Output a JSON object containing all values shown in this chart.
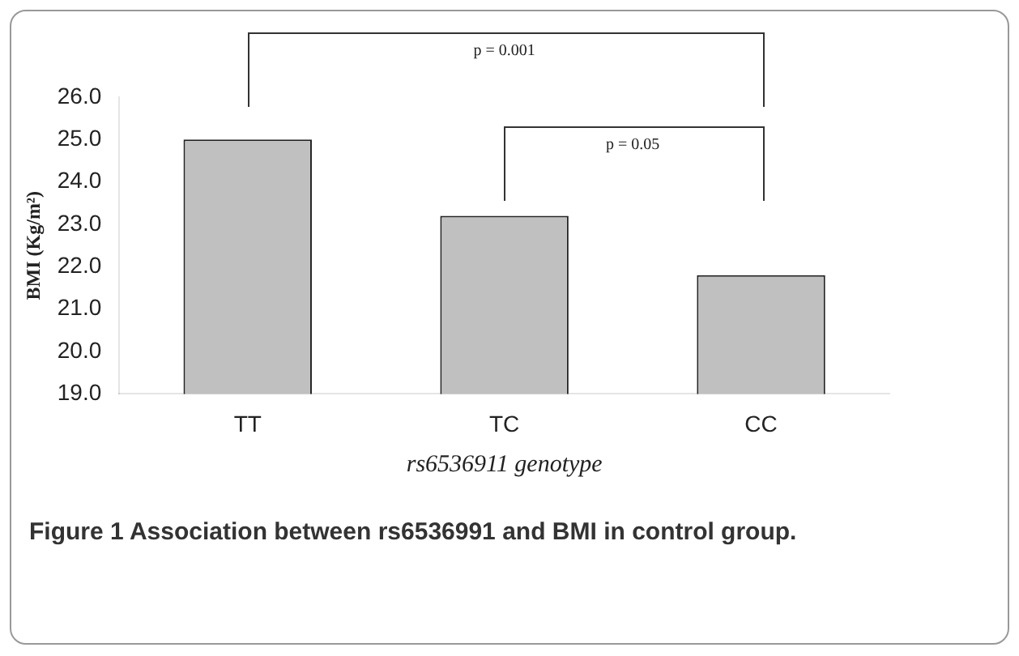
{
  "chart_data": {
    "type": "bar",
    "xlabel": "rs6536911 genotype",
    "ylabel": "BMI (Kg/m²)",
    "categories": [
      "TT",
      "TC",
      "CC"
    ],
    "values": [
      25.0,
      23.2,
      21.8
    ],
    "color": "#c0c0c0",
    "ylim": [
      19,
      26
    ],
    "yticks": [
      {
        "value": 19,
        "label": "19.0"
      },
      {
        "value": 20,
        "label": "20.0"
      },
      {
        "value": 21,
        "label": "21.0"
      },
      {
        "value": 22,
        "label": "22.0"
      },
      {
        "value": 23,
        "label": "23.0"
      },
      {
        "value": 24,
        "label": "24.0"
      },
      {
        "value": 25,
        "label": "25.0"
      },
      {
        "value": 26,
        "label": "26.0"
      }
    ],
    "grid": false,
    "legend": false,
    "annotations": [
      "p = 0.001",
      "p = 0.05",
      "Figure 1 Association between rs6536991 and BMI in control group."
    ]
  }
}
